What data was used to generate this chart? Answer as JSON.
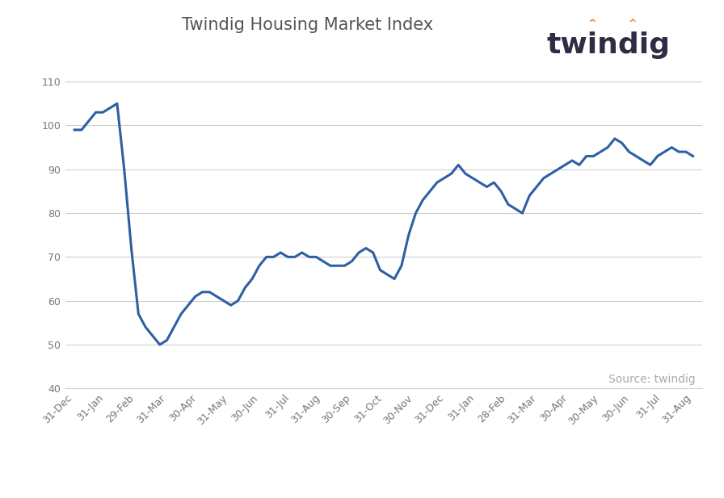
{
  "title": "Twindig Housing Market Index",
  "line_color": "#2e5fa3",
  "background_color": "#ffffff",
  "source_text": "Source: twindig",
  "ylim": [
    40,
    115
  ],
  "yticks": [
    40,
    50,
    60,
    70,
    80,
    90,
    100,
    110
  ],
  "x_labels": [
    "31-Dec",
    "31-Jan",
    "29-Feb",
    "31-Mar",
    "30-Apr",
    "31-May",
    "30-Jun",
    "31-Jul",
    "31-Aug",
    "30-Sep",
    "31-Oct",
    "30-Nov",
    "31-Dec",
    "31-Jan",
    "28-Feb",
    "31-Mar",
    "30-Apr",
    "30-May",
    "30-Jun",
    "31-Jul",
    "31-Aug"
  ],
  "grid_color": "#d0d0d0",
  "title_fontsize": 15,
  "tick_fontsize": 9,
  "source_fontsize": 10,
  "line_width": 2.2,
  "logo_color": "#2d2d45",
  "logo_orange": "#f97316",
  "logo_fontsize": 26,
  "y_data": [
    99,
    99,
    101,
    103,
    103,
    104,
    105,
    90,
    72,
    57,
    54,
    52,
    50,
    51,
    54,
    57,
    59,
    61,
    62,
    62,
    61,
    60,
    59,
    60,
    63,
    65,
    68,
    70,
    70,
    71,
    70,
    70,
    71,
    70,
    70,
    69,
    68,
    68,
    68,
    69,
    71,
    72,
    71,
    67,
    66,
    65,
    68,
    75,
    80,
    83,
    85,
    87,
    88,
    89,
    91,
    89,
    88,
    87,
    86,
    87,
    85,
    82,
    81,
    80,
    84,
    86,
    88,
    89,
    90,
    91,
    92,
    91,
    93,
    93,
    94,
    95,
    97,
    96,
    94,
    93,
    92,
    91,
    93,
    94,
    95,
    94,
    94,
    93
  ],
  "n_ticks": 21
}
